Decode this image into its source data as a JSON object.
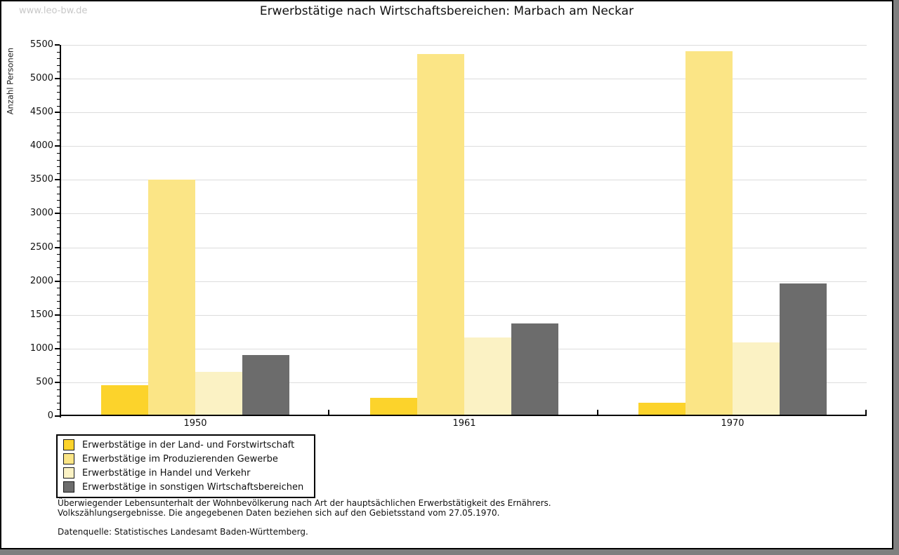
{
  "watermark": "www.leo-bw.de",
  "title": "Erwerbstätige nach Wirtschaftsbereichen: Marbach am Neckar",
  "chart_data": {
    "type": "bar",
    "title": "Erwerbstätige nach Wirtschaftsbereichen: Marbach am Neckar",
    "xlabel": "",
    "ylabel": "Anzahl Personen",
    "categories": [
      "1950",
      "1961",
      "1970"
    ],
    "series": [
      {
        "name": "Erwerbstätige in der Land- und Forstwirtschaft",
        "color": "#FCD32B",
        "values": [
          460,
          270,
          200
        ]
      },
      {
        "name": "Erwerbstätige im Produzierenden Gewerbe",
        "color": "#FBE586",
        "values": [
          3500,
          5360,
          5410
        ]
      },
      {
        "name": "Erwerbstätige in Handel und Verkehr",
        "color": "#FBF2C4",
        "values": [
          660,
          1160,
          1090
        ]
      },
      {
        "name": "Erwerbstätige in sonstigen Wirtschaftsbereichen",
        "color": "#6C6C6C",
        "values": [
          900,
          1370,
          1970
        ]
      }
    ],
    "ylim": [
      0,
      5500
    ],
    "yticks": [
      0,
      500,
      1000,
      1500,
      2000,
      2500,
      3000,
      3500,
      4000,
      4500,
      5000,
      5500
    ],
    "minor_tick_step": 100,
    "grid": "horizontal-major",
    "grid_color": "#DCDCDC",
    "legend_position": "bottom-left"
  },
  "footer": {
    "line1": "Überwiegender Lebensunterhalt der Wohnbevölkerung nach Art der hauptsächlichen Erwerbstätigkeit des Ernährers.",
    "line2": "Volkszählungsergebnisse. Die angegebenen Daten beziehen sich auf den Gebietsstand vom 27.05.1970.",
    "source": "Datenquelle: Statistisches Landesamt Baden-Württemberg."
  }
}
